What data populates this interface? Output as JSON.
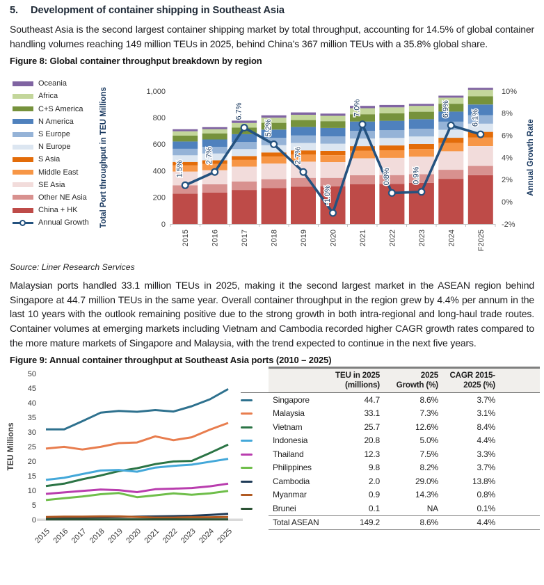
{
  "page": {
    "heading": {
      "number": "5.",
      "title": "Development of container shipping in Southeast Asia"
    },
    "para1": "Southeast Asia is the second largest container shipping market by total throughput, accounting for 14.5% of global container handling volumes reaching 149 million TEUs in 2025, behind China’s 367 million TEUs with a 35.8% global share.",
    "figure8_caption": "Figure 8: Global container throughput breakdown by region",
    "source": "Source: Liner Research Services",
    "para2": "Malaysian ports handled 33.1 million TEUs in 2025, making it the second largest market in the ASEAN region behind Singapore at 44.7 million TEUs in the same year. Overall container throughput in the region grew by 4.4% per annum in the last 10 years with the outlook remaining positive due to the strong growth in both intra-regional and long-haul trade routes. Container volumes at emerging markets including Vietnam and Cambodia recorded higher CAGR growth rates compared to the more mature markets of Singapore and Malaysia, with the trend expected to continue in the next five years.",
    "figure9_caption": "Figure 9: Annual container throughput at Southeast Asia ports (2010 – 2025)"
  },
  "chart_data": [
    {
      "id": "fig8",
      "type": "bar",
      "title": "Global container throughput breakdown by region",
      "categories": [
        "2015",
        "2016",
        "2017",
        "2018",
        "2019",
        "2020",
        "2021",
        "2022",
        "2023",
        "2024",
        "F2025"
      ],
      "series": [
        {
          "name": "China + HK",
          "color": "#BE4B48",
          "values": [
            229,
            237,
            256,
            271,
            280,
            283,
            300,
            302,
            310,
            340,
            367
          ]
        },
        {
          "name": "Other NE Asia",
          "color": "#D8918F",
          "values": [
            62,
            62,
            64,
            66,
            67,
            64,
            67,
            66,
            65,
            68,
            70
          ]
        },
        {
          "name": "SE Asia",
          "color": "#F2DCDB",
          "values": [
            104,
            106,
            112,
            118,
            122,
            119,
            128,
            130,
            132,
            140,
            149
          ]
        },
        {
          "name": "Middle East",
          "color": "#F79646",
          "values": [
            46,
            47,
            50,
            52,
            53,
            52,
            56,
            57,
            58,
            61,
            64
          ]
        },
        {
          "name": "S Asia",
          "color": "#E36C09",
          "values": [
            26,
            27,
            29,
            31,
            32,
            32,
            35,
            36,
            37,
            40,
            43
          ]
        },
        {
          "name": "N Europe",
          "color": "#DCE6F1",
          "values": [
            50,
            51,
            53,
            55,
            56,
            54,
            57,
            57,
            57,
            60,
            62
          ]
        },
        {
          "name": "S Europe",
          "color": "#95B3D7",
          "values": [
            49,
            50,
            53,
            55,
            56,
            55,
            58,
            58,
            58,
            61,
            64
          ]
        },
        {
          "name": "N America",
          "color": "#4F81BD",
          "values": [
            55,
            56,
            59,
            62,
            64,
            64,
            70,
            71,
            72,
            76,
            80
          ]
        },
        {
          "name": "C+S America",
          "color": "#76923C",
          "values": [
            45,
            46,
            49,
            51,
            52,
            51,
            55,
            56,
            56,
            59,
            62
          ]
        },
        {
          "name": "Africa",
          "color": "#C3D69B",
          "values": [
            32,
            32,
            35,
            39,
            40,
            40,
            45,
            45,
            44,
            46,
            49
          ]
        },
        {
          "name": "Oceania",
          "color": "#8064A2",
          "values": [
            15,
            15,
            18,
            18,
            18,
            17,
            18,
            18,
            15,
            15,
            15
          ]
        }
      ],
      "line_series": {
        "name": "Annual Growth",
        "color": "#24527F",
        "values": [
          1.5,
          2.7,
          6.7,
          5.2,
          2.7,
          -1.0,
          7.0,
          0.8,
          0.9,
          6.9,
          6.1
        ],
        "labels": [
          "1.5%",
          "2.7%",
          "6.7%",
          "5.2%",
          "2.7%",
          "-1.0%",
          "7.0%",
          "0.8%",
          "0.9%",
          "6.9%",
          "6.1%"
        ]
      },
      "ylabel_left": "Total Port throughput in TEU Millions",
      "ylabel_right": "Annual Growth Rate",
      "ylim_left": [
        0,
        1000
      ],
      "yticks_left": {
        "values": [
          0,
          200,
          400,
          600,
          800,
          1000
        ],
        "labels": [
          "0",
          "200",
          "400",
          "600",
          "800",
          "1,000"
        ]
      },
      "ylim_right": [
        -2,
        10
      ],
      "yticks_right": {
        "values": [
          -2,
          0,
          2,
          4,
          6,
          8,
          10
        ],
        "labels": [
          "-2%",
          "0%",
          "2%",
          "4%",
          "6%",
          "8%",
          "10%"
        ]
      },
      "legend_position": "left",
      "grid": false,
      "legend": [
        {
          "label": "Oceania",
          "color": "#8064A2",
          "type": "box"
        },
        {
          "label": "Africa",
          "color": "#C3D69B",
          "type": "box"
        },
        {
          "label": "C+S America",
          "color": "#76923C",
          "type": "box"
        },
        {
          "label": "N America",
          "color": "#4F81BD",
          "type": "box"
        },
        {
          "label": "S Europe",
          "color": "#95B3D7",
          "type": "box"
        },
        {
          "label": "N Europe",
          "color": "#DCE6F1",
          "type": "box"
        },
        {
          "label": "S Asia",
          "color": "#E36C09",
          "type": "box"
        },
        {
          "label": "Middle East",
          "color": "#F79646",
          "type": "box"
        },
        {
          "label": "SE Asia",
          "color": "#F2DCDB",
          "type": "box"
        },
        {
          "label": "Other NE Asia",
          "color": "#D8918F",
          "type": "box"
        },
        {
          "label": "China + HK",
          "color": "#BE4B48",
          "type": "box"
        },
        {
          "label": "Annual Growth",
          "color": "#24527F",
          "type": "line"
        }
      ]
    },
    {
      "id": "fig9",
      "type": "line",
      "x": [
        "2015",
        "2016",
        "2017",
        "2018",
        "2019",
        "2020",
        "2021",
        "2022",
        "2023",
        "2024",
        "2025"
      ],
      "ylabel": "TEU Millions",
      "ylim": [
        0,
        50
      ],
      "ytick_step": 5,
      "grid": false,
      "series": [
        {
          "name": "Singapore",
          "color": "#2E718E",
          "values": [
            30.9,
            30.9,
            33.7,
            36.6,
            37.2,
            36.9,
            37.5,
            37.0,
            38.8,
            41.2,
            44.7
          ]
        },
        {
          "name": "Malaysia",
          "color": "#E87D4E",
          "values": [
            24.3,
            24.9,
            24.0,
            24.9,
            26.2,
            26.4,
            28.5,
            27.2,
            28.2,
            30.8,
            33.1
          ]
        },
        {
          "name": "Vietnam",
          "color": "#2B7445",
          "values": [
            11.5,
            12.3,
            13.8,
            15.1,
            16.6,
            17.6,
            19.0,
            19.9,
            20.1,
            22.8,
            25.7
          ]
        },
        {
          "name": "Indonesia",
          "color": "#44A8D9",
          "values": [
            13.6,
            14.3,
            15.6,
            16.8,
            17.0,
            16.4,
            17.8,
            18.4,
            18.8,
            19.8,
            20.8
          ]
        },
        {
          "name": "Thailand",
          "color": "#B93DAE",
          "values": [
            8.8,
            9.3,
            9.8,
            10.3,
            10.1,
            9.4,
            10.4,
            10.6,
            10.8,
            11.4,
            12.3
          ]
        },
        {
          "name": "Philippines",
          "color": "#6FBE4A",
          "values": [
            6.7,
            7.3,
            7.9,
            8.7,
            9.1,
            7.7,
            8.3,
            9.0,
            8.5,
            9.0,
            9.8
          ]
        },
        {
          "name": "Cambodia",
          "color": "#1F3B57",
          "values": [
            0.5,
            0.6,
            0.7,
            0.8,
            0.9,
            1.0,
            1.1,
            1.2,
            1.3,
            1.6,
            2.0
          ]
        },
        {
          "name": "Myanmar",
          "color": "#B05A22",
          "values": [
            0.9,
            1.0,
            1.0,
            1.1,
            1.1,
            0.9,
            0.7,
            0.7,
            0.8,
            0.8,
            0.9
          ]
        },
        {
          "name": "Brunei",
          "color": "#2C5234",
          "values": [
            0.1,
            0.1,
            0.1,
            0.1,
            0.1,
            0.1,
            0.1,
            0.1,
            0.1,
            0.1,
            0.1
          ]
        }
      ]
    }
  ],
  "fig9_table": {
    "headers": {
      "teu": [
        "TEU in 2025",
        "(millions)"
      ],
      "growth": [
        "2025",
        "Growth (%)"
      ],
      "cagr": [
        "CAGR 2015-",
        "2025 (%)"
      ]
    },
    "rows": [
      {
        "country": "Singapore",
        "teu": "44.7",
        "growth": "8.6%",
        "cagr": "3.7%"
      },
      {
        "country": "Malaysia",
        "teu": "33.1",
        "growth": "7.3%",
        "cagr": "3.1%"
      },
      {
        "country": "Vietnam",
        "teu": "25.7",
        "growth": "12.6%",
        "cagr": "8.4%"
      },
      {
        "country": "Indonesia",
        "teu": "20.8",
        "growth": "5.0%",
        "cagr": "4.4%"
      },
      {
        "country": "Thailand",
        "teu": "12.3",
        "growth": "7.5%",
        "cagr": "3.3%"
      },
      {
        "country": "Philippines",
        "teu": "9.8",
        "growth": "8.2%",
        "cagr": "3.7%"
      },
      {
        "country": "Cambodia",
        "teu": "2.0",
        "growth": "29.0%",
        "cagr": "13.8%"
      },
      {
        "country": "Myanmar",
        "teu": "0.9",
        "growth": "14.3%",
        "cagr": "0.8%"
      },
      {
        "country": "Brunei",
        "teu": "0.1",
        "growth": "NA",
        "cagr": "0.1%"
      }
    ],
    "total": {
      "label": "Total ASEAN",
      "teu": "149.2",
      "growth": "8.6%",
      "cagr": "4.4%"
    }
  }
}
